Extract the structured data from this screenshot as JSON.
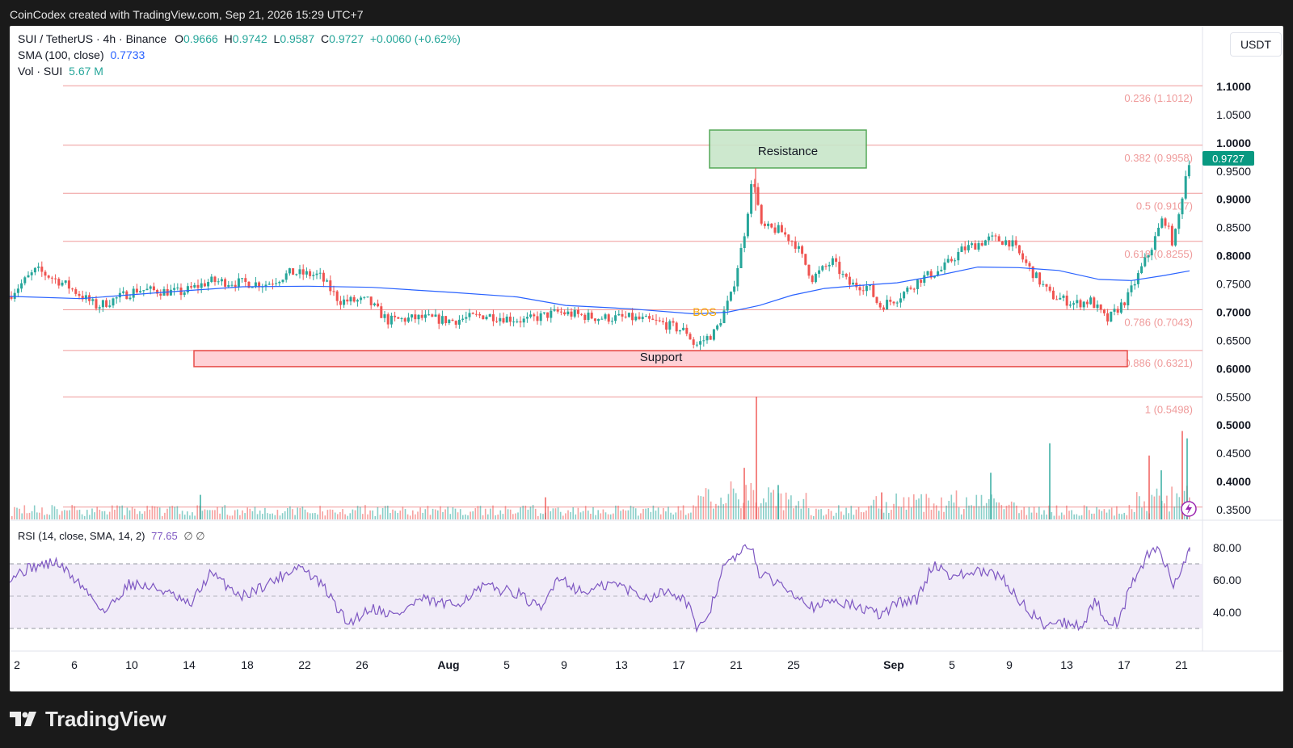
{
  "header": {
    "attribution": "CoinCodex created with TradingView.com, Sep 21, 2026 15:29 UTC+7"
  },
  "legend": {
    "symbol": "SUI / TetherUS · 4h · Binance",
    "o_label": "O",
    "o_value": "0.9666",
    "h_label": "H",
    "h_value": "0.9742",
    "l_label": "L",
    "l_value": "0.9587",
    "c_label": "C",
    "c_value": "0.9727",
    "change": "+0.0060 (+0.62%)",
    "sma_label": "SMA (100, close)",
    "sma_value": "0.7733",
    "vol_label": "Vol · SUI",
    "vol_value": "5.67 M",
    "rsi_label": "RSI (14, close, SMA, 14, 2)",
    "rsi_value": "77.65",
    "rsi_extra": "∅ ∅"
  },
  "unit_label": "USDT",
  "current_price_label": "0.9727",
  "annotations": {
    "resistance": "Resistance",
    "support": "Support",
    "bos": "BOS"
  },
  "footer": {
    "brand": "TradingView",
    "logo": "tradingview-logo-icon"
  },
  "colors": {
    "up": "#26a69a",
    "down": "#ef5350",
    "sma": "#2962ff",
    "rsi": "#7e57c2",
    "fib": "#ef9a9a",
    "resistance_fill": "#c8e6c9",
    "resistance_border": "#43a047",
    "support_fill": "#ffcdd2",
    "support_border": "#e53935",
    "bos": "#f7a600",
    "background": "#ffffff",
    "outer": "#1a1a1a"
  },
  "chart_data": [
    {
      "type": "line",
      "name": "price",
      "description_series": "4h close path (approx.), SUI/USDT",
      "x_tick_labels": [
        "2",
        "6",
        "10",
        "14",
        "18",
        "22",
        "26",
        "Aug",
        "5",
        "9",
        "13",
        "17",
        "21",
        "25",
        "Sep",
        "5",
        "9",
        "13",
        "17",
        "21"
      ],
      "y_tick_labels": [
        "1.1000",
        "1.0500",
        "1.0000",
        "0.9500",
        "0.9000",
        "0.8500",
        "0.8000",
        "0.7500",
        "0.7000",
        "0.6500",
        "0.6000",
        "0.5500",
        "0.5000",
        "0.4500",
        "0.4000",
        "0.3500"
      ],
      "ylim": [
        0.344,
        1.1345
      ],
      "anchors": [
        [
          0,
          0.7
        ],
        [
          15,
          0.735
        ],
        [
          45,
          0.775
        ],
        [
          80,
          0.75
        ],
        [
          120,
          0.71
        ],
        [
          170,
          0.74
        ],
        [
          225,
          0.735
        ],
        [
          260,
          0.755
        ],
        [
          330,
          0.75
        ],
        [
          360,
          0.77
        ],
        [
          395,
          0.765
        ],
        [
          420,
          0.72
        ],
        [
          455,
          0.72
        ],
        [
          480,
          0.685
        ],
        [
          520,
          0.69
        ],
        [
          560,
          0.685
        ],
        [
          600,
          0.695
        ],
        [
          650,
          0.685
        ],
        [
          690,
          0.7
        ],
        [
          740,
          0.69
        ],
        [
          780,
          0.69
        ],
        [
          820,
          0.68
        ],
        [
          850,
          0.665
        ],
        [
          860,
          0.64
        ],
        [
          885,
          0.665
        ],
        [
          905,
          0.73
        ],
        [
          920,
          0.83
        ],
        [
          932,
          0.945
        ],
        [
          942,
          0.85
        ],
        [
          965,
          0.845
        ],
        [
          985,
          0.82
        ],
        [
          1005,
          0.76
        ],
        [
          1030,
          0.79
        ],
        [
          1050,
          0.75
        ],
        [
          1075,
          0.745
        ],
        [
          1088,
          0.71
        ],
        [
          1110,
          0.725
        ],
        [
          1140,
          0.76
        ],
        [
          1165,
          0.775
        ],
        [
          1190,
          0.81
        ],
        [
          1225,
          0.83
        ],
        [
          1250,
          0.825
        ],
        [
          1275,
          0.775
        ],
        [
          1300,
          0.73
        ],
        [
          1330,
          0.715
        ],
        [
          1350,
          0.72
        ],
        [
          1370,
          0.685
        ],
        [
          1395,
          0.725
        ],
        [
          1410,
          0.77
        ],
        [
          1425,
          0.815
        ],
        [
          1440,
          0.87
        ],
        [
          1452,
          0.82
        ],
        [
          1460,
          0.88
        ],
        [
          1466,
          0.935
        ],
        [
          1472,
          0.9727
        ]
      ],
      "sma_series_name": "SMA (100, close)",
      "sma_anchors": [
        [
          12,
          0.728
        ],
        [
          100,
          0.724
        ],
        [
          200,
          0.735
        ],
        [
          300,
          0.745
        ],
        [
          380,
          0.746
        ],
        [
          460,
          0.744
        ],
        [
          560,
          0.735
        ],
        [
          640,
          0.727
        ],
        [
          700,
          0.712
        ],
        [
          780,
          0.706
        ],
        [
          860,
          0.697
        ],
        [
          900,
          0.7
        ],
        [
          940,
          0.712
        ],
        [
          980,
          0.73
        ],
        [
          1020,
          0.742
        ],
        [
          1060,
          0.747
        ],
        [
          1110,
          0.752
        ],
        [
          1160,
          0.765
        ],
        [
          1210,
          0.78
        ],
        [
          1260,
          0.779
        ],
        [
          1310,
          0.774
        ],
        [
          1360,
          0.758
        ],
        [
          1400,
          0.756
        ],
        [
          1440,
          0.765
        ],
        [
          1472,
          0.7733
        ]
      ],
      "fib_levels": [
        {
          "ratio": "0.236 (1.1012)",
          "value": 1.1012
        },
        {
          "ratio": "0.382 (0.9958)",
          "value": 0.9958
        },
        {
          "ratio": "0.5 (0.9107)",
          "value": 0.9107
        },
        {
          "ratio": "0.618 (0.8255)",
          "value": 0.8255
        },
        {
          "ratio": "0.786 (0.7043)",
          "value": 0.7043
        },
        {
          "ratio": "0.886 (0.6321)",
          "value": 0.6321
        },
        {
          "ratio": "1 (0.5498)",
          "value": 0.5498
        },
        {
          "ratio": "",
          "value": 0.3547
        }
      ],
      "resistance_zone": [
        0.9555,
        1.0227
      ],
      "support_zone": [
        0.6035,
        0.6318
      ],
      "last_price": 0.9727
    },
    {
      "type": "bar",
      "name": "Vol · SUI",
      "spikes": [
        {
          "x": 935,
          "h": 1.0
        },
        {
          "x": 1298,
          "h": 0.62
        },
        {
          "x": 1462,
          "h": 0.72
        },
        {
          "x": 1468,
          "h": 0.66
        },
        {
          "x": 1421,
          "h": 0.52
        },
        {
          "x": 1225,
          "h": 0.38
        },
        {
          "x": 920,
          "h": 0.42
        },
        {
          "x": 247,
          "h": 0.2
        },
        {
          "x": 674,
          "h": 0.18
        },
        {
          "x": 1436,
          "h": 0.4
        },
        {
          "x": 1090,
          "h": 0.22
        },
        {
          "x": 962,
          "h": 0.28
        }
      ]
    },
    {
      "type": "line",
      "name": "RSI (14, close, SMA, 14, 2)",
      "y_tick_labels": [
        "80.00",
        "60.00",
        "40.00"
      ],
      "ylim": [
        20.2,
        89.2
      ],
      "bands": [
        70,
        50,
        30
      ],
      "last_value": 77.65,
      "anchors": [
        [
          12,
          62
        ],
        [
          40,
          68
        ],
        [
          70,
          71
        ],
        [
          100,
          57
        ],
        [
          130,
          40
        ],
        [
          160,
          58
        ],
        [
          200,
          54
        ],
        [
          235,
          44
        ],
        [
          260,
          64
        ],
        [
          300,
          50
        ],
        [
          340,
          60
        ],
        [
          370,
          69
        ],
        [
          400,
          56
        ],
        [
          430,
          33
        ],
        [
          460,
          43
        ],
        [
          490,
          38
        ],
        [
          520,
          48
        ],
        [
          560,
          44
        ],
        [
          600,
          56
        ],
        [
          640,
          52
        ],
        [
          670,
          41
        ],
        [
          690,
          63
        ],
        [
          720,
          52
        ],
        [
          760,
          58
        ],
        [
          800,
          49
        ],
        [
          830,
          54
        ],
        [
          855,
          44
        ],
        [
          862,
          26
        ],
        [
          880,
          43
        ],
        [
          895,
          68
        ],
        [
          915,
          76
        ],
        [
          930,
          82
        ],
        [
          940,
          63
        ],
        [
          965,
          58
        ],
        [
          990,
          50
        ],
        [
          1010,
          42
        ],
        [
          1030,
          48
        ],
        [
          1050,
          45
        ],
        [
          1075,
          41
        ],
        [
          1090,
          38
        ],
        [
          1110,
          46
        ],
        [
          1135,
          48
        ],
        [
          1155,
          70
        ],
        [
          1180,
          62
        ],
        [
          1210,
          65
        ],
        [
          1240,
          62
        ],
        [
          1260,
          48
        ],
        [
          1275,
          40
        ],
        [
          1290,
          33
        ],
        [
          1310,
          34
        ],
        [
          1340,
          32
        ],
        [
          1355,
          47
        ],
        [
          1370,
          35
        ],
        [
          1385,
          34
        ],
        [
          1400,
          58
        ],
        [
          1420,
          75
        ],
        [
          1432,
          79
        ],
        [
          1440,
          73
        ],
        [
          1452,
          57
        ],
        [
          1466,
          72
        ],
        [
          1472,
          77.65
        ]
      ]
    }
  ]
}
